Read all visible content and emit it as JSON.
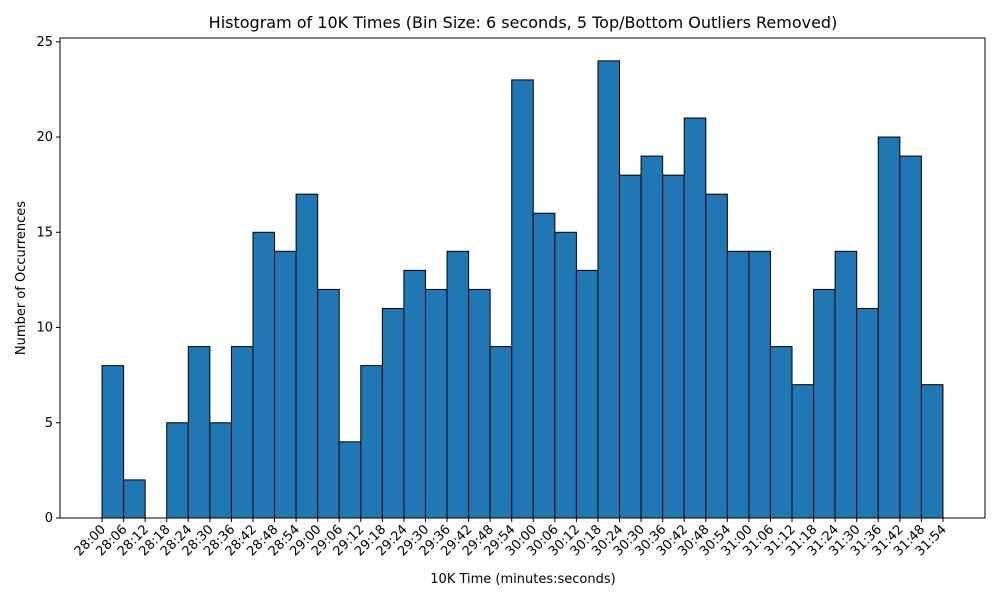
{
  "chart_data": {
    "type": "histogram",
    "title": "Histogram of 10K Times (Bin Size: 6 seconds, 5 Top/Bottom Outliers Removed)",
    "x_label": "10K Time (minutes:seconds)",
    "y_label": "Number of Occurrences",
    "color": "#1f77b4",
    "edgecolor": "#000000",
    "bins": [
      1680,
      1686,
      1692,
      1698,
      1704,
      1710,
      1716,
      1722,
      1728,
      1734,
      1740,
      1746,
      1752,
      1758,
      1764,
      1770,
      1776,
      1782,
      1788,
      1794,
      1800,
      1806,
      1812,
      1818,
      1824,
      1830,
      1836,
      1842,
      1848,
      1854,
      1860,
      1866,
      1872,
      1878,
      1884,
      1890,
      1896,
      1902,
      1908,
      1914
    ],
    "values": [
      8,
      2,
      0,
      5,
      9,
      5,
      9,
      15,
      14,
      17,
      12,
      4,
      8,
      11,
      13,
      12,
      14,
      12,
      9,
      23,
      16,
      15,
      13,
      24,
      18,
      19,
      18,
      21,
      17,
      14,
      14,
      9,
      7,
      12,
      14,
      11,
      20,
      19,
      7
    ],
    "xlim": [
      1668.3,
      1925.7
    ],
    "ylim": [
      0,
      25.2
    ],
    "yticks": [
      0,
      5,
      10,
      15,
      20,
      25
    ],
    "xticks": [
      {
        "value": 1680,
        "label": "28:00"
      },
      {
        "value": 1686,
        "label": "28:06"
      },
      {
        "value": 1692,
        "label": "28:12"
      },
      {
        "value": 1698,
        "label": "28:18"
      },
      {
        "value": 1704,
        "label": "28:24"
      },
      {
        "value": 1710,
        "label": "28:30"
      },
      {
        "value": 1716,
        "label": "28:36"
      },
      {
        "value": 1722,
        "label": "28:42"
      },
      {
        "value": 1728,
        "label": "28:48"
      },
      {
        "value": 1734,
        "label": "28:54"
      },
      {
        "value": 1740,
        "label": "29:00"
      },
      {
        "value": 1746,
        "label": "29:06"
      },
      {
        "value": 1752,
        "label": "29:12"
      },
      {
        "value": 1758,
        "label": "29:18"
      },
      {
        "value": 1764,
        "label": "29:24"
      },
      {
        "value": 1770,
        "label": "29:30"
      },
      {
        "value": 1776,
        "label": "29:36"
      },
      {
        "value": 1782,
        "label": "29:42"
      },
      {
        "value": 1788,
        "label": "29:48"
      },
      {
        "value": 1794,
        "label": "29:54"
      },
      {
        "value": 1800,
        "label": "30:00"
      },
      {
        "value": 1806,
        "label": "30:06"
      },
      {
        "value": 1812,
        "label": "30:12"
      },
      {
        "value": 1818,
        "label": "30:18"
      },
      {
        "value": 1824,
        "label": "30:24"
      },
      {
        "value": 1830,
        "label": "30:30"
      },
      {
        "value": 1836,
        "label": "30:36"
      },
      {
        "value": 1842,
        "label": "30:42"
      },
      {
        "value": 1848,
        "label": "30:48"
      },
      {
        "value": 1854,
        "label": "30:54"
      },
      {
        "value": 1860,
        "label": "31:00"
      },
      {
        "value": 1866,
        "label": "31:06"
      },
      {
        "value": 1872,
        "label": "31:12"
      },
      {
        "value": 1878,
        "label": "31:18"
      },
      {
        "value": 1884,
        "label": "31:24"
      },
      {
        "value": 1890,
        "label": "31:30"
      },
      {
        "value": 1896,
        "label": "31:36"
      },
      {
        "value": 1902,
        "label": "31:42"
      },
      {
        "value": 1908,
        "label": "31:48"
      },
      {
        "value": 1914,
        "label": "31:54"
      }
    ]
  }
}
